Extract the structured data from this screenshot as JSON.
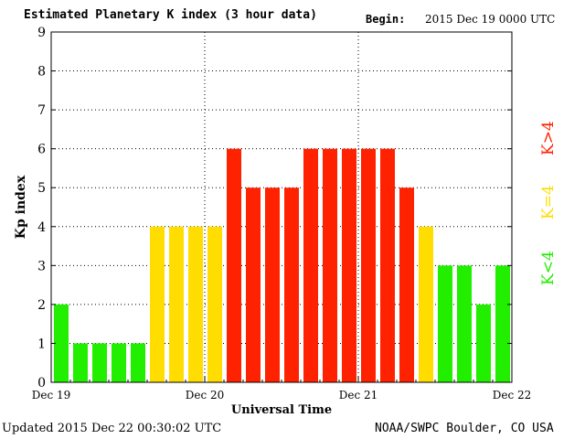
{
  "header": {
    "title": "Estimated Planetary K index (3 hour data)",
    "begin_label": "Begin:",
    "begin_value": "2015 Dec 19 0000 UTC"
  },
  "footer": {
    "updated": "Updated 2015 Dec 22 00:30:02 UTC",
    "credit": "NOAA/SWPC Boulder, CO USA"
  },
  "legend": {
    "red_label": "K>4",
    "yellow_label": "K=4",
    "green_label": "K<4"
  },
  "colors": {
    "green": "#22ee00",
    "yellow": "#ffdd00",
    "red": "#ff2200"
  },
  "chart_data": {
    "type": "bar",
    "xlabel": "Universal Time",
    "ylabel": "Kp index",
    "ylim": [
      0,
      9
    ],
    "yticks": [
      "0",
      "1",
      "2",
      "3",
      "4",
      "5",
      "6",
      "7",
      "8",
      "9"
    ],
    "xticks": [
      "Dec 19",
      "Dec 20",
      "Dec 21",
      "Dec 22"
    ],
    "grid": "dotted",
    "values": [
      2,
      1,
      1,
      1,
      1,
      4,
      4,
      4,
      4,
      6,
      5,
      5,
      5,
      6,
      6,
      6,
      6,
      6,
      5,
      4,
      3,
      3,
      2,
      3
    ]
  }
}
